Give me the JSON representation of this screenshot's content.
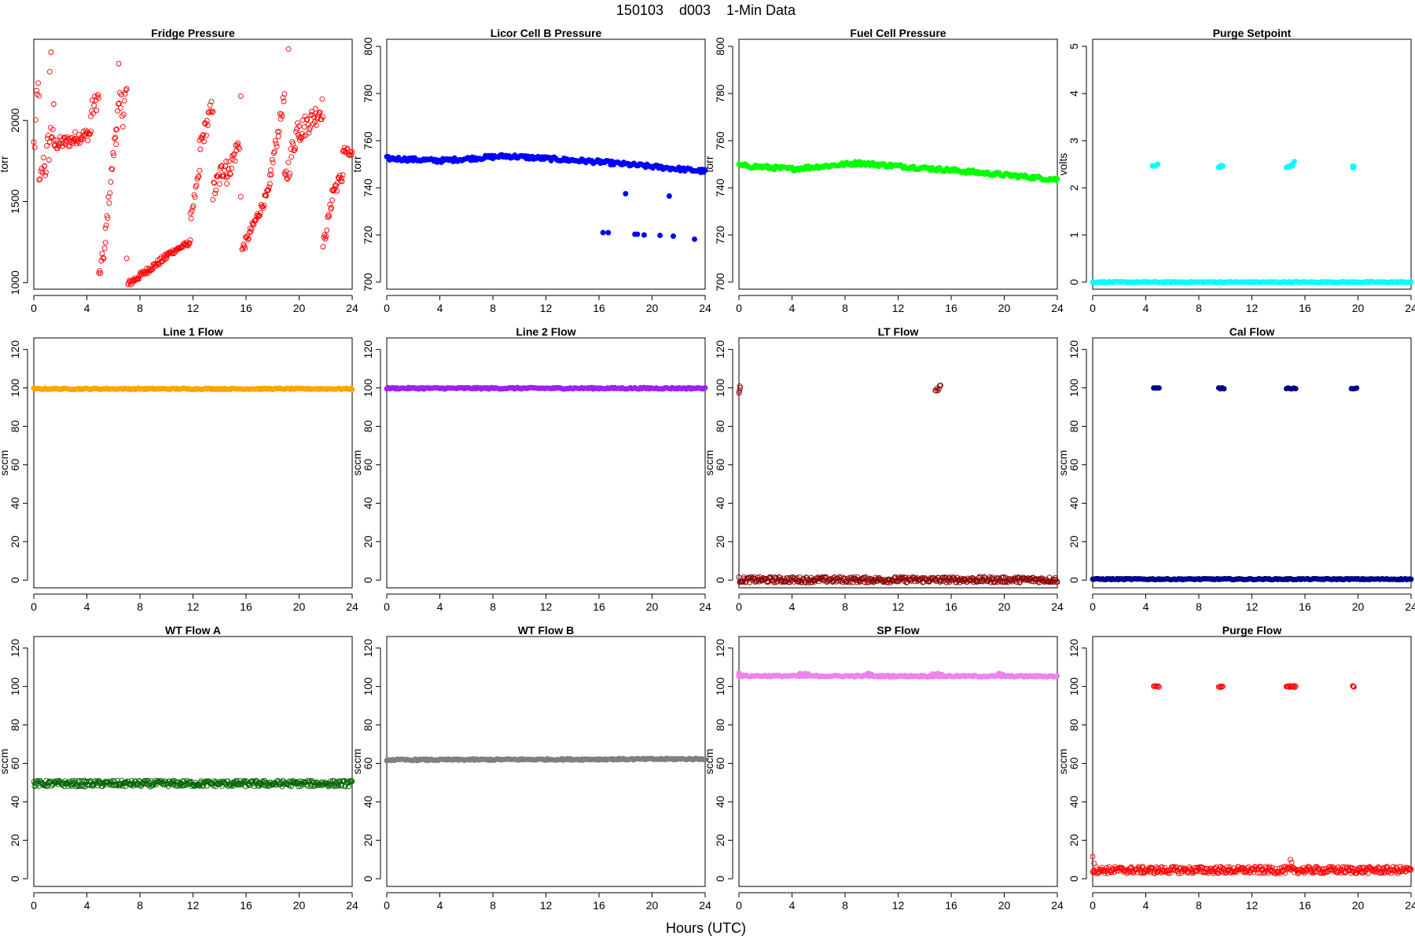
{
  "figure": {
    "title": "150103    d003    1-Min Data",
    "xlabel": "Hours (UTC)"
  },
  "chart_data": [
    {
      "type": "scatter",
      "title": "Fridge Pressure",
      "ylabel": "torr",
      "xlim": [
        0,
        24
      ],
      "ylim": [
        960,
        2500
      ],
      "x_ticks": [
        0,
        4,
        8,
        12,
        16,
        20,
        24
      ],
      "y_ticks": [
        1000,
        1500,
        2000
      ],
      "series": [
        {
          "color": "#ff0000",
          "filled": false,
          "segments": [
            {
              "x0": 0.0,
              "x1": 0.4,
              "y0": 1820,
              "y1": 2250,
              "spread": 150
            },
            {
              "x0": 0.4,
              "x1": 0.8,
              "y0": 1580,
              "y1": 1760,
              "spread": 70
            },
            {
              "x0": 0.8,
              "x1": 1.5,
              "y0": 1700,
              "y1": 2000,
              "spread": 120
            },
            {
              "x0": 1.5,
              "x1": 3.0,
              "y0": 1850,
              "y1": 1880,
              "spread": 40
            },
            {
              "x0": 3.0,
              "x1": 4.3,
              "y0": 1890,
              "y1": 1920,
              "spread": 40
            },
            {
              "x0": 4.3,
              "x1": 4.9,
              "y0": 2050,
              "y1": 2150,
              "spread": 60
            },
            {
              "x0": 4.9,
              "x1": 5.4,
              "y0": 1030,
              "y1": 1230,
              "spread": 50
            },
            {
              "x0": 5.4,
              "x1": 6.2,
              "y0": 1300,
              "y1": 1950,
              "spread": 50
            },
            {
              "x0": 6.2,
              "x1": 7.0,
              "y0": 1980,
              "y1": 2150,
              "spread": 130
            },
            {
              "x0": 7.1,
              "x1": 10.0,
              "y0": 990,
              "y1": 1160,
              "spread": 20
            },
            {
              "x0": 10.0,
              "x1": 11.8,
              "y0": 1170,
              "y1": 1250,
              "spread": 15
            },
            {
              "x0": 11.8,
              "x1": 12.5,
              "y0": 1400,
              "y1": 1680,
              "spread": 30
            },
            {
              "x0": 12.5,
              "x1": 13.5,
              "y0": 1830,
              "y1": 2100,
              "spread": 60
            },
            {
              "x0": 13.5,
              "x1": 14.5,
              "y0": 1550,
              "y1": 1750,
              "spread": 70
            },
            {
              "x0": 14.5,
              "x1": 15.5,
              "y0": 1650,
              "y1": 1870,
              "spread": 60
            },
            {
              "x0": 15.7,
              "x1": 17.8,
              "y0": 1200,
              "y1": 1580,
              "spread": 30
            },
            {
              "x0": 17.8,
              "x1": 18.9,
              "y0": 1650,
              "y1": 2150,
              "spread": 50
            },
            {
              "x0": 18.9,
              "x1": 20.0,
              "y0": 1600,
              "y1": 2000,
              "spread": 80
            },
            {
              "x0": 20.0,
              "x1": 21.8,
              "y0": 1930,
              "y1": 2080,
              "spread": 70
            },
            {
              "x0": 21.8,
              "x1": 22.5,
              "y0": 1220,
              "y1": 1520,
              "spread": 40
            },
            {
              "x0": 22.5,
              "x1": 23.3,
              "y0": 1560,
              "y1": 1660,
              "spread": 40
            },
            {
              "x0": 23.3,
              "x1": 24.0,
              "y0": 1820,
              "y1": 1780,
              "spread": 30
            }
          ],
          "extra": [
            [
              1.3,
              2420
            ],
            [
              19.2,
              2440
            ],
            [
              15.6,
              2150
            ],
            [
              15.6,
              1530
            ],
            [
              7.0,
              1150
            ],
            [
              6.4,
              2350
            ],
            [
              1.2,
              2300
            ]
          ]
        }
      ]
    },
    {
      "type": "scatter",
      "title": "Licor Cell B Pressure",
      "ylabel": "torr",
      "xlim": [
        0,
        24
      ],
      "ylim": [
        697,
        803
      ],
      "x_ticks": [
        0,
        4,
        8,
        12,
        16,
        20,
        24
      ],
      "y_ticks": [
        700,
        720,
        740,
        760,
        780,
        800
      ],
      "series": [
        {
          "color": "#0000ff",
          "filled": true,
          "segments": [
            {
              "x0": 0,
              "x1": 4,
              "y0": 752.5,
              "y1": 751.5,
              "spread": 0.8
            },
            {
              "x0": 4,
              "x1": 9,
              "y0": 751.5,
              "y1": 753.5,
              "spread": 0.8
            },
            {
              "x0": 9,
              "x1": 16,
              "y0": 753.5,
              "y1": 751.0,
              "spread": 0.8
            },
            {
              "x0": 16,
              "x1": 24,
              "y0": 751.0,
              "y1": 747.0,
              "spread": 0.8
            }
          ],
          "extra": [
            [
              16.3,
              721
            ],
            [
              16.7,
              721
            ],
            [
              18.0,
              737.5
            ],
            [
              18.7,
              720.3
            ],
            [
              18.9,
              720.3
            ],
            [
              19.4,
              720
            ],
            [
              20.6,
              719.8
            ],
            [
              21.3,
              736.5
            ],
            [
              21.6,
              719.5
            ],
            [
              23.2,
              718.2
            ]
          ]
        }
      ]
    },
    {
      "type": "scatter",
      "title": "Fuel Cell Pressure",
      "ylabel": "torr",
      "xlim": [
        0,
        24
      ],
      "ylim": [
        697,
        803
      ],
      "x_ticks": [
        0,
        4,
        8,
        12,
        16,
        20,
        24
      ],
      "y_ticks": [
        700,
        720,
        740,
        760,
        780,
        800
      ],
      "series": [
        {
          "color": "#00ff00",
          "filled": true,
          "segments": [
            {
              "x0": 0,
              "x1": 4,
              "y0": 749.5,
              "y1": 748.0,
              "spread": 0.8
            },
            {
              "x0": 4,
              "x1": 9,
              "y0": 748.0,
              "y1": 750.5,
              "spread": 0.8
            },
            {
              "x0": 9,
              "x1": 16,
              "y0": 750.5,
              "y1": 747.5,
              "spread": 0.8
            },
            {
              "x0": 16,
              "x1": 24,
              "y0": 747.5,
              "y1": 743.5,
              "spread": 0.8
            }
          ],
          "extra": []
        }
      ]
    },
    {
      "type": "scatter",
      "title": "Purge Setpoint",
      "ylabel": "volts",
      "xlim": [
        0,
        24
      ],
      "ylim": [
        -0.15,
        5.15
      ],
      "x_ticks": [
        0,
        4,
        8,
        12,
        16,
        20,
        24
      ],
      "y_ticks": [
        0,
        1,
        2,
        3,
        4,
        5
      ],
      "series": [
        {
          "color": "#00ffff",
          "filled": true,
          "segments": [
            {
              "x0": 0,
              "x1": 24,
              "y0": 0,
              "y1": 0,
              "spread": 0.01
            },
            {
              "x0": 4.5,
              "x1": 4.9,
              "y0": 2.42,
              "y1": 2.52,
              "spread": 0.05
            },
            {
              "x0": 9.5,
              "x1": 9.8,
              "y0": 2.44,
              "y1": 2.44,
              "spread": 0.04
            },
            {
              "x0": 14.6,
              "x1": 15.2,
              "y0": 2.44,
              "y1": 2.52,
              "spread": 0.05
            },
            {
              "x0": 19.6,
              "x1": 19.7,
              "y0": 2.44,
              "y1": 2.44,
              "spread": 0.02
            }
          ],
          "extra": []
        }
      ]
    },
    {
      "type": "scatter",
      "title": "Line 1 Flow",
      "ylabel": "sccm",
      "xlim": [
        0,
        24
      ],
      "ylim": [
        -4,
        126
      ],
      "x_ticks": [
        0,
        4,
        8,
        12,
        16,
        20,
        24
      ],
      "y_ticks": [
        0,
        20,
        40,
        60,
        80,
        100,
        120
      ],
      "series": [
        {
          "color": "#ffa500",
          "filled": true,
          "segments": [
            {
              "x0": 0,
              "x1": 24,
              "y0": 99.5,
              "y1": 99.5,
              "spread": 0.3
            }
          ],
          "extra": []
        }
      ]
    },
    {
      "type": "scatter",
      "title": "Line 2 Flow",
      "ylabel": "sccm",
      "xlim": [
        0,
        24
      ],
      "ylim": [
        -4,
        126
      ],
      "x_ticks": [
        0,
        4,
        8,
        12,
        16,
        20,
        24
      ],
      "y_ticks": [
        0,
        20,
        40,
        60,
        80,
        100,
        120
      ],
      "series": [
        {
          "color": "#a020f0",
          "filled": true,
          "segments": [
            {
              "x0": 0,
              "x1": 24,
              "y0": 99.8,
              "y1": 99.8,
              "spread": 0.4
            }
          ],
          "extra": []
        }
      ]
    },
    {
      "type": "scatter",
      "title": "LT Flow",
      "ylabel": "sccm",
      "xlim": [
        0,
        24
      ],
      "ylim": [
        -4,
        126
      ],
      "x_ticks": [
        0,
        4,
        8,
        12,
        16,
        20,
        24
      ],
      "y_ticks": [
        0,
        20,
        40,
        60,
        80,
        100,
        120
      ],
      "series": [
        {
          "color": "#8b0000",
          "filled": false,
          "segments": [
            {
              "x0": 0,
              "x1": 24,
              "y0": 0.2,
              "y1": 0.2,
              "spread": 1.5
            },
            {
              "x0": 0.0,
              "x1": 0.1,
              "y0": 98,
              "y1": 101,
              "spread": 1.2
            },
            {
              "x0": 14.8,
              "x1": 15.2,
              "y0": 98,
              "y1": 101.5,
              "spread": 1.2
            }
          ],
          "extra": []
        }
      ]
    },
    {
      "type": "scatter",
      "title": "Cal Flow",
      "ylabel": "sccm",
      "xlim": [
        0,
        24
      ],
      "ylim": [
        -4,
        126
      ],
      "x_ticks": [
        0,
        4,
        8,
        12,
        16,
        20,
        24
      ],
      "y_ticks": [
        0,
        20,
        40,
        60,
        80,
        100,
        120
      ],
      "series": [
        {
          "color": "#00008b",
          "filled": true,
          "segments": [
            {
              "x0": 0,
              "x1": 24,
              "y0": 0.5,
              "y1": 0.5,
              "spread": 0.3
            },
            {
              "x0": 4.6,
              "x1": 5.0,
              "y0": 99.8,
              "y1": 99.8,
              "spread": 0.3
            },
            {
              "x0": 9.5,
              "x1": 9.9,
              "y0": 99.8,
              "y1": 99.8,
              "spread": 0.3
            },
            {
              "x0": 14.6,
              "x1": 15.3,
              "y0": 99.8,
              "y1": 99.8,
              "spread": 0.3
            },
            {
              "x0": 19.5,
              "x1": 19.9,
              "y0": 99.8,
              "y1": 99.8,
              "spread": 0.3
            }
          ],
          "extra": []
        }
      ]
    },
    {
      "type": "scatter",
      "title": "WT Flow A",
      "ylabel": "sccm",
      "xlim": [
        0,
        24
      ],
      "ylim": [
        -4,
        126
      ],
      "x_ticks": [
        0,
        4,
        8,
        12,
        16,
        20,
        24
      ],
      "y_ticks": [
        0,
        20,
        40,
        60,
        80,
        100,
        120
      ],
      "series": [
        {
          "color": "#006400",
          "filled": false,
          "segments": [
            {
              "x0": 0,
              "x1": 24,
              "y0": 49.5,
              "y1": 49.5,
              "spread": 1.6
            }
          ],
          "extra": []
        }
      ]
    },
    {
      "type": "scatter",
      "title": "WT Flow B",
      "ylabel": "sccm",
      "xlim": [
        0,
        24
      ],
      "ylim": [
        -4,
        126
      ],
      "x_ticks": [
        0,
        4,
        8,
        12,
        16,
        20,
        24
      ],
      "y_ticks": [
        0,
        20,
        40,
        60,
        80,
        100,
        120
      ],
      "series": [
        {
          "color": "#808080",
          "filled": true,
          "segments": [
            {
              "x0": 0,
              "x1": 24,
              "y0": 61.8,
              "y1": 62.3,
              "spread": 0.4
            }
          ],
          "extra": []
        }
      ]
    },
    {
      "type": "scatter",
      "title": "SP Flow",
      "ylabel": "sccm",
      "xlim": [
        0,
        24
      ],
      "ylim": [
        -4,
        126
      ],
      "x_ticks": [
        0,
        4,
        8,
        12,
        16,
        20,
        24
      ],
      "y_ticks": [
        0,
        20,
        40,
        60,
        80,
        100,
        120
      ],
      "series": [
        {
          "color": "#ee82ee",
          "filled": true,
          "segments": [
            {
              "x0": 0,
              "x1": 24,
              "y0": 105.5,
              "y1": 105.3,
              "spread": 0.4
            },
            {
              "x0": 4.6,
              "x1": 5.2,
              "y0": 106.5,
              "y1": 106.5,
              "spread": 0.4
            },
            {
              "x0": 9.6,
              "x1": 10.0,
              "y0": 106.5,
              "y1": 106.5,
              "spread": 0.4
            },
            {
              "x0": 14.6,
              "x1": 15.3,
              "y0": 106.5,
              "y1": 106.5,
              "spread": 0.4
            },
            {
              "x0": 19.6,
              "x1": 19.9,
              "y0": 106.5,
              "y1": 106.5,
              "spread": 0.4
            }
          ],
          "extra": [
            [
              0.0,
              107
            ]
          ]
        }
      ]
    },
    {
      "type": "scatter",
      "title": "Purge Flow",
      "ylabel": "sccm",
      "xlim": [
        0,
        24
      ],
      "ylim": [
        -4,
        126
      ],
      "x_ticks": [
        0,
        4,
        8,
        12,
        16,
        20,
        24
      ],
      "y_ticks": [
        0,
        20,
        40,
        60,
        80,
        100,
        120
      ],
      "series": [
        {
          "color": "#ff0000",
          "filled": false,
          "segments": [
            {
              "x0": 0,
              "x1": 24,
              "y0": 4.5,
              "y1": 4.5,
              "spread": 1.8
            },
            {
              "x0": 4.6,
              "x1": 5.0,
              "y0": 100,
              "y1": 100,
              "spread": 0.4
            },
            {
              "x0": 9.5,
              "x1": 9.8,
              "y0": 100,
              "y1": 100,
              "spread": 0.4
            },
            {
              "x0": 14.6,
              "x1": 15.3,
              "y0": 100,
              "y1": 100,
              "spread": 0.4
            },
            {
              "x0": 19.6,
              "x1": 19.7,
              "y0": 100,
              "y1": 100,
              "spread": 0.4
            }
          ],
          "extra": [
            [
              0.0,
              11.5
            ],
            [
              0.1,
              8
            ],
            [
              14.9,
              10
            ],
            [
              15.0,
              8.5
            ]
          ]
        }
      ]
    }
  ]
}
